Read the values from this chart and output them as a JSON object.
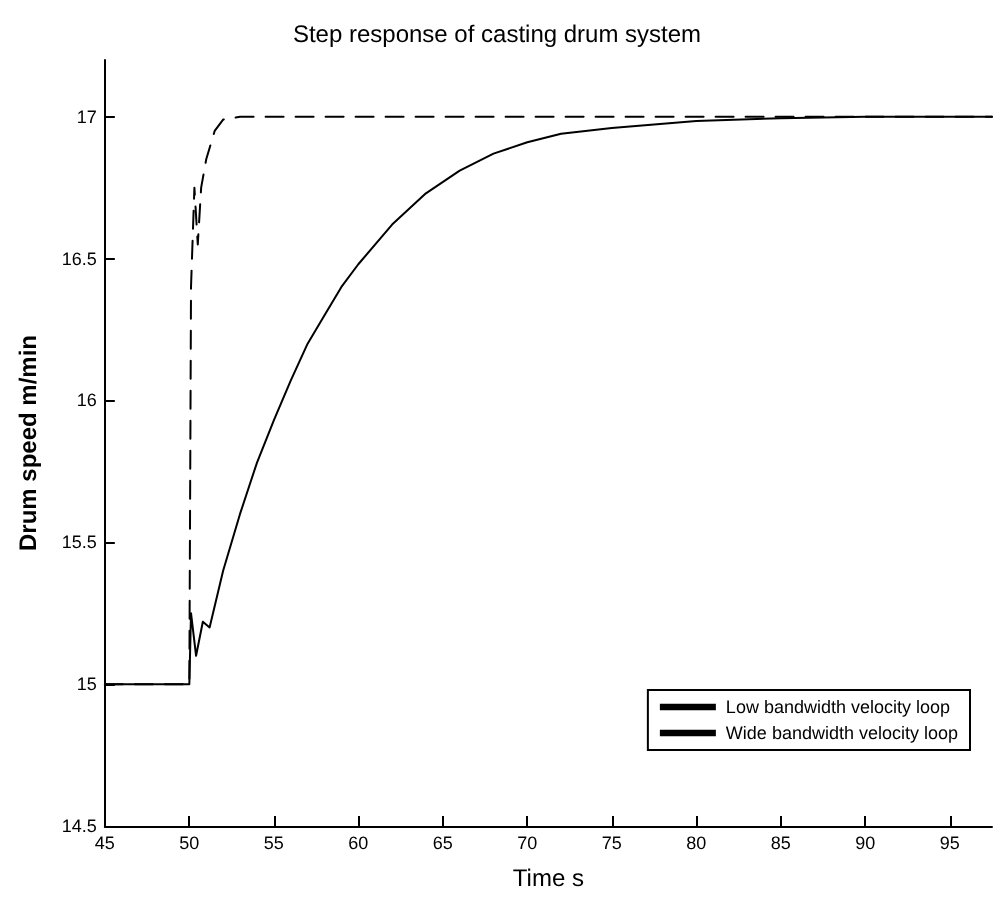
{
  "chart_data": {
    "type": "line",
    "title": "Step response of casting drum system",
    "xlabel": "Time s",
    "ylabel": "Drum speed m/min",
    "xlim": [
      45,
      97.5
    ],
    "xticks": [
      45,
      50,
      55,
      60,
      65,
      70,
      75,
      80,
      85,
      90,
      95
    ],
    "ylim": [
      14.5,
      17.2
    ],
    "yticks": [
      14.5,
      15,
      15.5,
      16,
      16.5,
      17
    ],
    "grid": false,
    "legend": "bottom right",
    "marker": "none",
    "series": [
      {
        "name": "Low bandwidth velocity loop",
        "color": "#000000",
        "line_style": "solid",
        "x": [
          45,
          50,
          50.1,
          50.4,
          50.8,
          51.2,
          52,
          53,
          54,
          55,
          56,
          57,
          58,
          59,
          60,
          62,
          64,
          66,
          68,
          70,
          72,
          75,
          80,
          85,
          90,
          97.5
        ],
        "values": [
          15,
          15,
          15.25,
          15.1,
          15.22,
          15.2,
          15.4,
          15.6,
          15.78,
          15.93,
          16.07,
          16.2,
          16.3,
          16.4,
          16.48,
          16.62,
          16.73,
          16.81,
          16.87,
          16.91,
          16.94,
          16.96,
          16.985,
          16.995,
          17,
          17
        ]
      },
      {
        "name": "Wide bandwidth velocity loop",
        "color": "#000000",
        "line_style": "dashed",
        "x": [
          45,
          50,
          50.1,
          50.3,
          50.5,
          50.7,
          51,
          51.5,
          52,
          53,
          97.5
        ],
        "values": [
          15,
          15,
          16.4,
          16.75,
          16.55,
          16.75,
          16.85,
          16.95,
          16.99,
          17,
          17
        ]
      }
    ]
  }
}
